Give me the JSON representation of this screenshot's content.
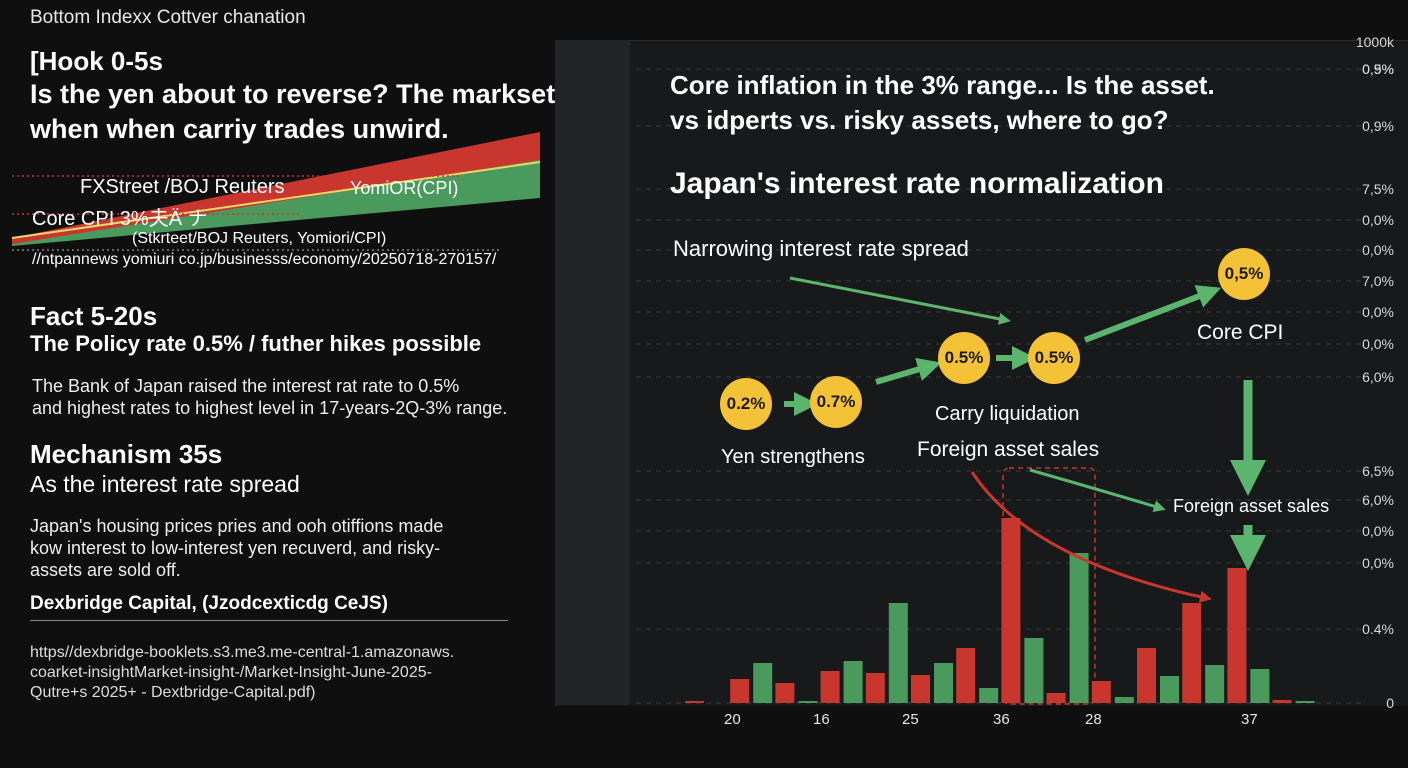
{
  "header": {
    "title": "Bottom Indexx Cottver chanation"
  },
  "hook": {
    "label": "[Hook 0-5s",
    "line1": "Is the yen  about to reverse? The markset will",
    "line2": "when when carriy trades unwird."
  },
  "mini_chart": {
    "source_line": "FXStreet /BOJ Reuters",
    "source_right": "YomiOR(CPI)",
    "core_label": "Core CPI 3%夫Ä ナ",
    "sources2": "(Stkrteet/BOJ Reuters, Yomiori/CPI)",
    "url": "//ntpannews yomiuri co.jp/businesss/economy/20250718-270157/"
  },
  "fact": {
    "label": "Fact 5-20s",
    "headline": "The Policy rate 0.5% / futher hikes possible",
    "body1": "The Bank of Japan raised the interest rat rate to 0.5%",
    "body2": "and highest rates to highest level in 17-years-2Q-3% range."
  },
  "mechanism": {
    "label": "Mechanism 35s",
    "headline": "As the interest rate spread",
    "body1": "Japan's housing prices pries and ooh otiffions made",
    "body2": "kow interest to low-interest yen recuverd, and risky-",
    "body3": "assets are sold off."
  },
  "source": {
    "name": "Dexbridge Capital, (Jzodcexticdg CeJS)",
    "url1": "https//dexbridge-booklets.s3.me3.me-central-1.amazonaws.",
    "url2": "coarket-insightMarket-insight-/Market-Insight-June-2025-",
    "url3": "Qutre+s 2025+ - Dextbridge-Capital.pdf)"
  },
  "chart_texts": {
    "question1": "Core inflation in the 3% range... Is the  asset.",
    "question2": "vs idperts vs. risky assets, where to go?",
    "title": "Japan's interest rate normalization",
    "spread_label": "Narrowing interest rate spread",
    "yen_label": "Yen strengthens",
    "carry_label": "Carry liquidation",
    "foreign_label": "Foreign asset sales",
    "core_cpi_label": "Core CPI",
    "foreign_label2": "Foreign asset sales"
  },
  "bubbles": [
    "0.2%",
    "0.7%",
    "0.5%",
    "0.5%",
    "0,5%"
  ],
  "colors": {
    "green": "#4a9a5e",
    "red": "#c8362e",
    "yellow": "#f4c236",
    "arrow_green": "#5bb56e"
  },
  "chart_data": {
    "type": "bar",
    "title": "Japan's interest rate normalization",
    "x_tick_labels": [
      "20",
      "16",
      "25",
      "36",
      "28",
      "37"
    ],
    "y_tick_labels": [
      "1000k",
      "0,9%",
      "0.5%",
      "0,9%",
      "7,5%",
      "0,0%",
      "0,0%",
      "7,0%",
      "0,0%",
      "0,0%",
      "6,0%",
      "6,5%",
      "6,0%",
      "0,0%",
      "0,0%",
      "0.4%",
      "0"
    ],
    "series": [
      {
        "name": "green",
        "values": [
          0,
          40,
          2,
          42,
          100,
          40,
          15,
          65,
          150,
          6,
          27,
          38,
          34,
          2
        ]
      },
      {
        "name": "red",
        "values": [
          2,
          24,
          20,
          32,
          30,
          28,
          55,
          185,
          10,
          22,
          55,
          100,
          135,
          3
        ]
      }
    ],
    "ylim": [
      0,
      200
    ]
  }
}
